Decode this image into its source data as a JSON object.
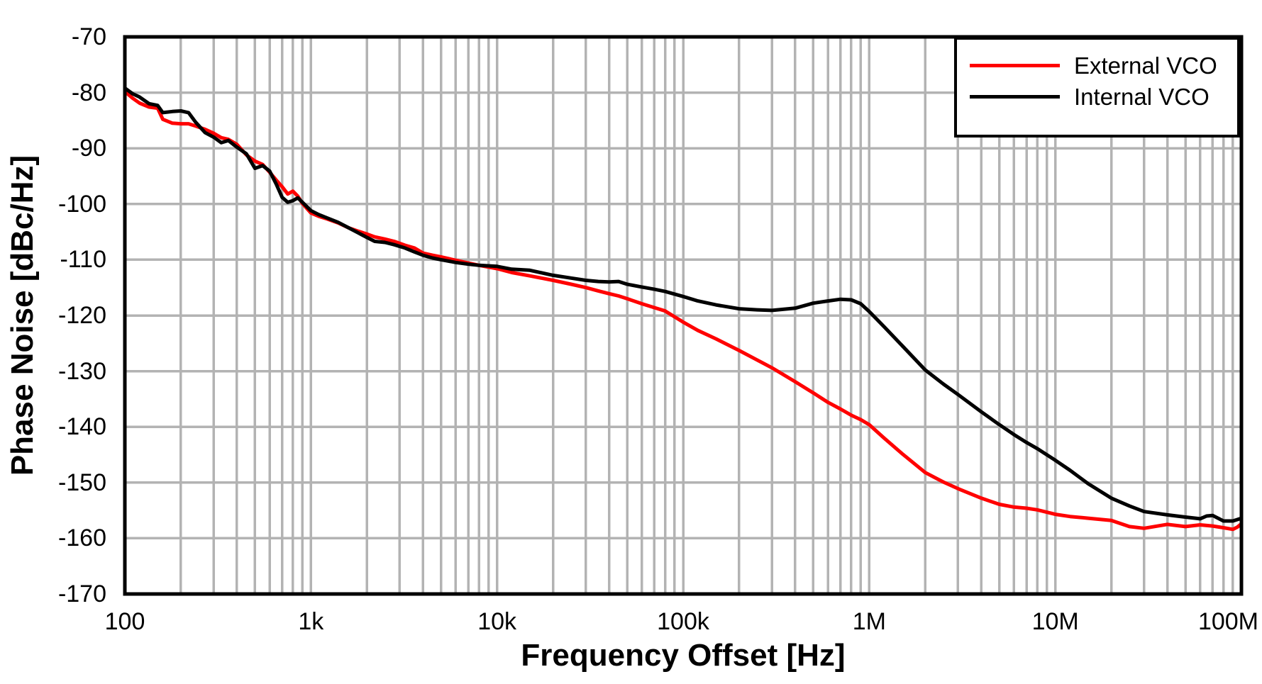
{
  "figure": {
    "background": "#ffffff",
    "axis_color": "#000000",
    "grid_color": "#b3b3b3",
    "border_width": 5,
    "grid_width": 3.5,
    "curve_width": 5
  },
  "chart_data": {
    "type": "line",
    "title": "",
    "xlabel": "Frequency Offset [Hz]",
    "ylabel": "Phase Noise [dBc/Hz]",
    "x_scale": "log",
    "xlim": [
      100,
      100000000
    ],
    "ylim": [
      -170,
      -70
    ],
    "x_tick_values": [
      100,
      1000,
      10000,
      100000,
      1000000,
      10000000,
      100000000
    ],
    "x_tick_labels": [
      "100",
      "1k",
      "10k",
      "100k",
      "1M",
      "10M",
      "100M"
    ],
    "y_tick_values": [
      -70,
      -80,
      -90,
      -100,
      -110,
      -120,
      -130,
      -140,
      -150,
      -160,
      -170
    ],
    "grid": {
      "horizontal": "major every 10 dB",
      "vertical": "log decades with minors 2-9"
    },
    "legend_position": "top-right",
    "series": [
      {
        "name": "External VCO",
        "color": "#ff0000",
        "x": [
          100,
          110,
          120,
          135,
          150,
          160,
          180,
          200,
          220,
          240,
          270,
          300,
          330,
          360,
          400,
          450,
          500,
          550,
          600,
          650,
          700,
          750,
          800,
          850,
          900,
          1000,
          1100,
          1200,
          1400,
          1600,
          1800,
          2000,
          2200,
          2500,
          2800,
          3200,
          3600,
          4000,
          4500,
          5000,
          6000,
          7000,
          8000,
          10000,
          12000,
          15000,
          20000,
          25000,
          30000,
          35000,
          40000,
          45000,
          50000,
          60000,
          70000,
          80000,
          100000,
          120000,
          150000,
          200000,
          250000,
          300000,
          400000,
          500000,
          600000,
          700000,
          800000,
          900000,
          1000000,
          1200000,
          1500000,
          2000000,
          2500000,
          3000000,
          4000000,
          5000000,
          6000000,
          7000000,
          8000000,
          10000000,
          12000000,
          15000000,
          20000000,
          25000000,
          30000000,
          40000000,
          50000000,
          60000000,
          70000000,
          80000000,
          90000000,
          95000000,
          100000000
        ],
        "y": [
          -79.8,
          -81.0,
          -81.9,
          -82.6,
          -82.8,
          -84.8,
          -85.5,
          -85.6,
          -85.6,
          -86.0,
          -86.6,
          -87.3,
          -88.1,
          -88.4,
          -89.3,
          -91.2,
          -92.3,
          -92.9,
          -94.3,
          -95.7,
          -96.9,
          -98.2,
          -97.7,
          -98.6,
          -99.9,
          -101.6,
          -102.2,
          -102.6,
          -103.4,
          -104.3,
          -104.9,
          -105.4,
          -105.9,
          -106.3,
          -106.7,
          -107.4,
          -107.9,
          -108.8,
          -109.2,
          -109.5,
          -110.1,
          -110.6,
          -111.0,
          -111.6,
          -112.3,
          -112.9,
          -113.7,
          -114.4,
          -115.0,
          -115.6,
          -116.1,
          -116.5,
          -117.0,
          -117.9,
          -118.6,
          -119.2,
          -121.2,
          -122.7,
          -124.2,
          -126.3,
          -128.0,
          -129.4,
          -131.9,
          -133.9,
          -135.6,
          -136.8,
          -137.9,
          -138.7,
          -139.6,
          -142.0,
          -144.8,
          -148.2,
          -149.9,
          -151.1,
          -152.8,
          -153.9,
          -154.4,
          -154.6,
          -154.9,
          -155.7,
          -156.1,
          -156.4,
          -156.8,
          -157.9,
          -158.2,
          -157.5,
          -157.9,
          -157.6,
          -157.8,
          -158.1,
          -158.4,
          -158.0,
          -157.4
        ]
      },
      {
        "name": "Internal VCO",
        "color": "#000000",
        "x": [
          100,
          110,
          120,
          135,
          150,
          160,
          180,
          200,
          220,
          240,
          270,
          300,
          330,
          360,
          400,
          450,
          500,
          550,
          600,
          650,
          700,
          750,
          800,
          850,
          900,
          1000,
          1100,
          1200,
          1400,
          1600,
          1800,
          2000,
          2200,
          2500,
          2800,
          3200,
          3600,
          4000,
          4500,
          5000,
          6000,
          7000,
          8000,
          10000,
          12000,
          15000,
          20000,
          25000,
          30000,
          35000,
          40000,
          45000,
          50000,
          60000,
          70000,
          80000,
          100000,
          120000,
          150000,
          200000,
          250000,
          300000,
          400000,
          500000,
          600000,
          700000,
          800000,
          900000,
          1000000,
          1200000,
          1500000,
          2000000,
          2500000,
          3000000,
          4000000,
          5000000,
          6000000,
          7000000,
          8000000,
          10000000,
          12000000,
          15000000,
          20000000,
          25000000,
          30000000,
          40000000,
          50000000,
          60000000,
          65000000,
          70000000,
          80000000,
          90000000,
          100000000
        ],
        "y": [
          -79.2,
          -80.2,
          -80.8,
          -82.0,
          -82.3,
          -83.6,
          -83.4,
          -83.3,
          -83.6,
          -85.3,
          -87.2,
          -88.0,
          -89.0,
          -88.6,
          -89.8,
          -91.0,
          -93.6,
          -93.1,
          -94.1,
          -96.4,
          -98.8,
          -99.7,
          -99.4,
          -98.9,
          -99.7,
          -101.2,
          -101.9,
          -102.4,
          -103.3,
          -104.3,
          -105.2,
          -106.0,
          -106.7,
          -106.9,
          -107.3,
          -107.9,
          -108.6,
          -109.2,
          -109.7,
          -110.0,
          -110.5,
          -110.8,
          -111.0,
          -111.2,
          -111.7,
          -111.9,
          -112.8,
          -113.3,
          -113.7,
          -113.9,
          -114.0,
          -113.9,
          -114.4,
          -114.9,
          -115.3,
          -115.7,
          -116.6,
          -117.4,
          -118.1,
          -118.8,
          -119.0,
          -119.1,
          -118.7,
          -117.8,
          -117.4,
          -117.1,
          -117.2,
          -117.9,
          -119.3,
          -122.0,
          -125.4,
          -129.8,
          -132.3,
          -134.2,
          -137.3,
          -139.6,
          -141.4,
          -142.8,
          -143.9,
          -146.0,
          -147.8,
          -150.2,
          -152.8,
          -154.2,
          -155.2,
          -155.8,
          -156.2,
          -156.5,
          -156.0,
          -155.9,
          -156.9,
          -156.9,
          -156.4
        ]
      }
    ]
  }
}
